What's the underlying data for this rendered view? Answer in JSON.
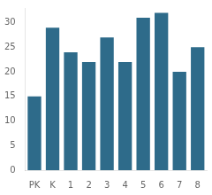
{
  "chart_data": {
    "type": "bar",
    "categories": [
      "PK",
      "K",
      "1",
      "2",
      "3",
      "4",
      "5",
      "6",
      "7",
      "8"
    ],
    "values": [
      15,
      29,
      24,
      22,
      27,
      22,
      31,
      32,
      20,
      25
    ],
    "color": "#2e6b8a",
    "ylim": [
      0,
      33
    ],
    "yticks": [
      0,
      5,
      10,
      15,
      20,
      25,
      30
    ],
    "grid": false
  }
}
